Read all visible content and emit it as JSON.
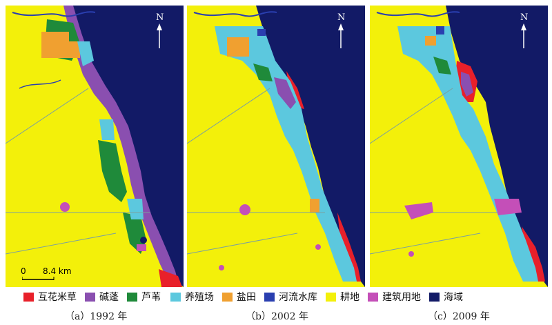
{
  "north_label": "N",
  "scale": {
    "zero": "0",
    "distance": "8.4 km"
  },
  "legend": [
    {
      "label": "互花米草",
      "color": "#e8202a"
    },
    {
      "label": "碱蓬",
      "color": "#8a4fb0"
    },
    {
      "label": "芦苇",
      "color": "#1f8a3a"
    },
    {
      "label": "养殖场",
      "color": "#5cc8de"
    },
    {
      "label": "盐田",
      "color": "#f0a030"
    },
    {
      "label": "河流水库",
      "color": "#2a3fb0"
    },
    {
      "label": "耕地",
      "color": "#f3f00a"
    },
    {
      "label": "建筑用地",
      "color": "#c44fb8"
    },
    {
      "label": "海域",
      "color": "#121a66"
    }
  ],
  "panels": [
    {
      "caption": "（a）1992 年"
    },
    {
      "caption": "（b）2002 年"
    },
    {
      "caption": "（c）2009 年"
    }
  ]
}
